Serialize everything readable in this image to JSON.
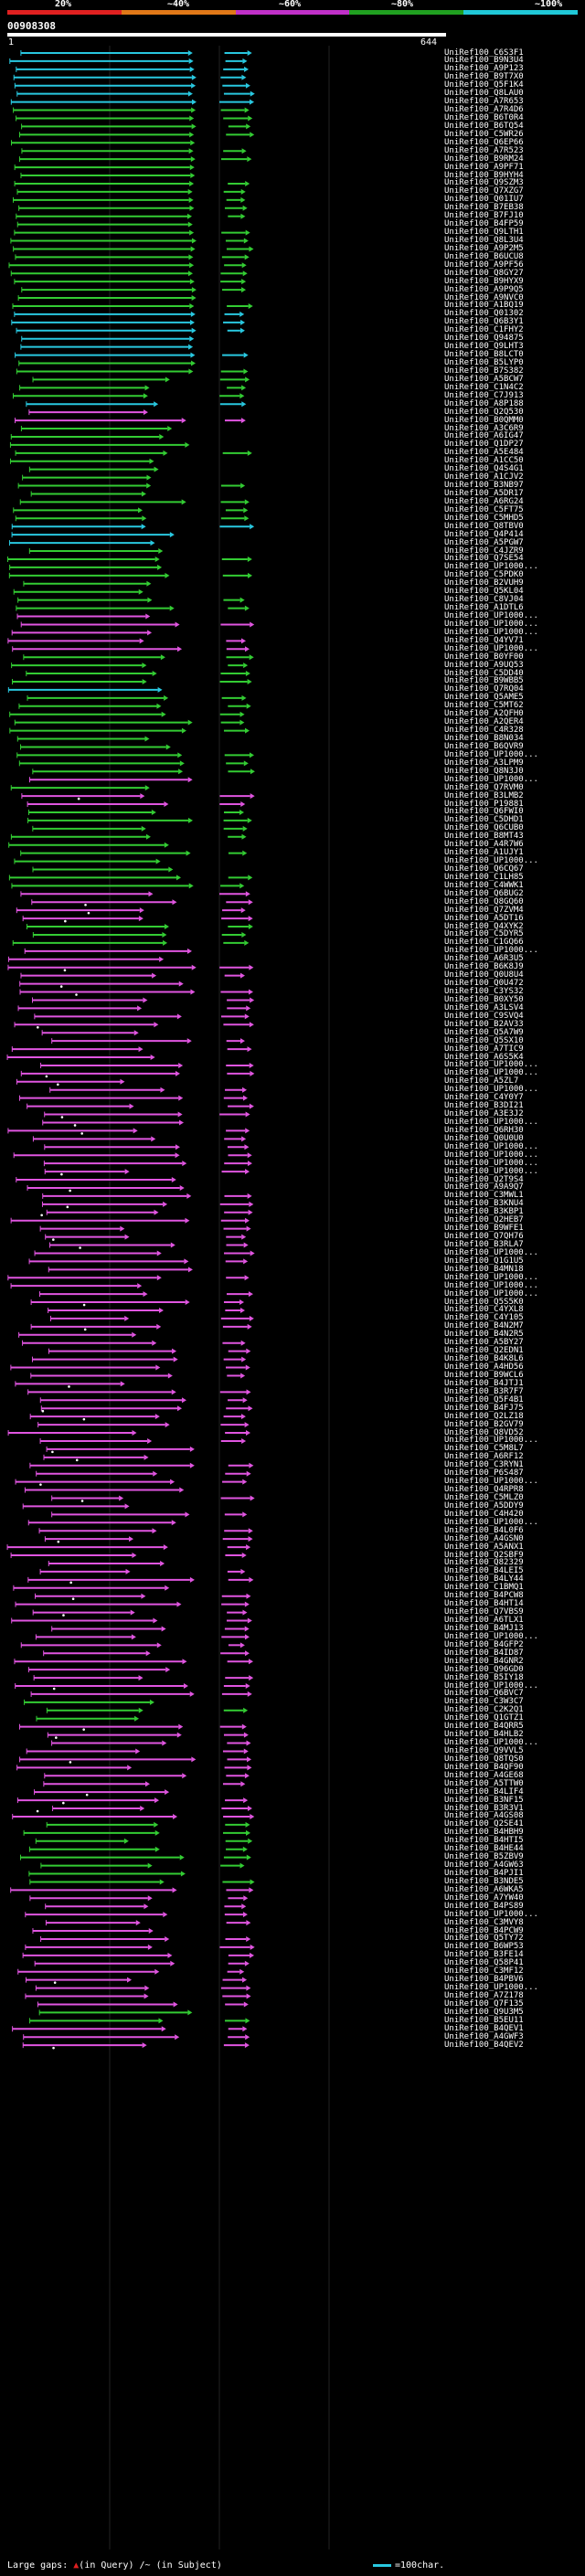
{
  "legend": {
    "labels": [
      "20%",
      "~40%",
      "~60%",
      "~80%",
      "~100%"
    ],
    "colors": [
      "#e02020",
      "#e07818",
      "#c030c8",
      "#20a020",
      "#20c8d8"
    ]
  },
  "query": {
    "id": "00908308",
    "start": "1",
    "end": "644"
  },
  "footer": {
    "large_gaps": "Large gaps:",
    "gap_query": "(in Query)",
    "gap_subject": "(in Subject)",
    "separator": " /~ ",
    "scale": "=100char."
  },
  "hits": [
    {
      "id": "UniRef100_C6S3F1",
      "c": "#29c8e0"
    },
    {
      "id": "UniRef100_B9N3U4",
      "c": "#29c8e0"
    },
    {
      "id": "UniRef100_A9P123",
      "c": "#29c8e0"
    },
    {
      "id": "UniRef100_B9T7X0",
      "c": "#29c8e0"
    },
    {
      "id": "UniRef100_Q5F1K4",
      "c": "#29c8e0"
    },
    {
      "id": "UniRef100_Q8LAU0",
      "c": "#29c8e0"
    },
    {
      "id": "UniRef100_A7R653",
      "c": "#29c8e0"
    },
    {
      "id": "UniRef100_A7R4D6",
      "c": "#33cc33"
    },
    {
      "id": "UniRef100_B6T0R4",
      "c": "#33cc33"
    },
    {
      "id": "UniRef100_B6TQ54",
      "c": "#33cc33"
    },
    {
      "id": "UniRef100_C5WR26",
      "c": "#33cc33"
    },
    {
      "id": "UniRef100_Q6EP66",
      "c": "#33cc33"
    },
    {
      "id": "UniRef100_A7R523",
      "c": "#33cc33"
    },
    {
      "id": "UniRef100_B9RM24",
      "c": "#33cc33"
    },
    {
      "id": "UniRef100_A9PF71",
      "c": "#33cc33"
    },
    {
      "id": "UniRef100_B9HYH4",
      "c": "#33cc33"
    },
    {
      "id": "UniRef100_Q9SZM3",
      "c": "#33cc33"
    },
    {
      "id": "UniRef100_Q7XZG7",
      "c": "#33cc33"
    },
    {
      "id": "UniRef100_Q01IU7",
      "c": "#33cc33"
    },
    {
      "id": "UniRef100_B7EB38",
      "c": "#33cc33"
    },
    {
      "id": "UniRef100_B7FJ10",
      "c": "#33cc33"
    },
    {
      "id": "UniRef100_B4FP59",
      "c": "#33cc33"
    },
    {
      "id": "UniRef100_Q9LTH1",
      "c": "#33cc33"
    },
    {
      "id": "UniRef100_Q8L3U4",
      "c": "#33cc33"
    },
    {
      "id": "UniRef100_A9P2M5",
      "c": "#33cc33"
    },
    {
      "id": "UniRef100_B6UCU8",
      "c": "#33cc33"
    },
    {
      "id": "UniRef100_A9PF56",
      "c": "#33cc33"
    },
    {
      "id": "UniRef100_Q8GY27",
      "c": "#33cc33"
    },
    {
      "id": "UniRef100_B9HYX9",
      "c": "#33cc33"
    },
    {
      "id": "UniRef100_A9P9Q5",
      "c": "#33cc33"
    },
    {
      "id": "UniRef100_A9NVC0",
      "c": "#33cc33"
    },
    {
      "id": "UniRef100_A1BQ19",
      "c": "#33cc33"
    },
    {
      "id": "UniRef100_Q01302",
      "c": "#29c8e0"
    },
    {
      "id": "UniRef100_Q6B3Y1",
      "c": "#29c8e0"
    },
    {
      "id": "UniRef100_C1FHY2",
      "c": "#29c8e0"
    },
    {
      "id": "UniRef100_Q94875",
      "c": "#29c8e0"
    },
    {
      "id": "UniRef100_Q9LHT3",
      "c": "#29c8e0"
    },
    {
      "id": "UniRef100_B8LCT0",
      "c": "#29c8e0"
    },
    {
      "id": "UniRef100_B5LYP0",
      "c": "#33cc33"
    },
    {
      "id": "UniRef100_B7S382",
      "c": "#33cc33"
    },
    {
      "id": "UniRef100_A5BCW7",
      "c": "#33cc33"
    },
    {
      "id": "UniRef100_C1N4C2",
      "c": "#33cc33"
    },
    {
      "id": "UniRef100_C7J913",
      "c": "#33cc33"
    },
    {
      "id": "UniRef100_A8P188",
      "c": "#29c8e0"
    },
    {
      "id": "UniRef100_Q2Q530",
      "c": "#e055e0"
    },
    {
      "id": "UniRef100_B0QMM0",
      "c": "#e055e0"
    },
    {
      "id": "UniRef100_A3C6R9",
      "c": "#33cc33"
    },
    {
      "id": "UniRef100_A6IG47",
      "c": "#33cc33"
    },
    {
      "id": "UniRef100_Q1DP27",
      "c": "#33cc33"
    },
    {
      "id": "UniRef100_A5E484",
      "c": "#33cc33"
    },
    {
      "id": "UniRef100_A1CC50",
      "c": "#33cc33"
    },
    {
      "id": "UniRef100_Q4S4G1",
      "c": "#33cc33"
    },
    {
      "id": "UniRef100_A1CJV2",
      "c": "#33cc33"
    },
    {
      "id": "UniRef100_B3NB97",
      "c": "#33cc33"
    },
    {
      "id": "UniRef100_A5DR17",
      "c": "#33cc33"
    },
    {
      "id": "UniRef100_A6RG24",
      "c": "#33cc33"
    },
    {
      "id": "UniRef100_C5FT75",
      "c": "#33cc33"
    },
    {
      "id": "UniRef100_C5MHD5",
      "c": "#33cc33"
    },
    {
      "id": "UniRef100_Q8TBV0",
      "c": "#29c8e0"
    },
    {
      "id": "UniRef100_Q4P414",
      "c": "#29c8e0"
    },
    {
      "id": "UniRef100_A5PGW7",
      "c": "#29c8e0"
    },
    {
      "id": "UniRef100_C4JZR9",
      "c": "#33cc33"
    },
    {
      "id": "UniRef100_Q7SE54",
      "c": "#33cc33"
    },
    {
      "id": "UniRef100_UP1000...",
      "c": "#33cc33"
    },
    {
      "id": "UniRef100_C5PDK0",
      "c": "#33cc33"
    },
    {
      "id": "UniRef100_B2VUH9",
      "c": "#33cc33"
    },
    {
      "id": "UniRef100_Q5KL04",
      "c": "#33cc33"
    },
    {
      "id": "UniRef100_C8VJ04",
      "c": "#33cc33"
    },
    {
      "id": "UniRef100_A1DTL6",
      "c": "#33cc33"
    },
    {
      "id": "UniRef100_UP1000...",
      "c": "#e055e0"
    },
    {
      "id": "UniRef100_UP1000...",
      "c": "#e055e0"
    },
    {
      "id": "UniRef100_UP1000...",
      "c": "#e055e0"
    },
    {
      "id": "UniRef100_Q4YV71",
      "c": "#e055e0"
    },
    {
      "id": "UniRef100_UP1000...",
      "c": "#e055e0"
    },
    {
      "id": "UniRef100_B0YF00",
      "c": "#33cc33"
    },
    {
      "id": "UniRef100_A9UQ53",
      "c": "#33cc33"
    },
    {
      "id": "UniRef100_C5DD40",
      "c": "#33cc33"
    },
    {
      "id": "UniRef100_B9WBB5",
      "c": "#33cc33"
    },
    {
      "id": "UniRef100_Q7RQ04",
      "c": "#29c8e0"
    },
    {
      "id": "UniRef100_Q5AME5",
      "c": "#33cc33"
    },
    {
      "id": "UniRef100_C5MT62",
      "c": "#33cc33"
    },
    {
      "id": "UniRef100_A2QFH0",
      "c": "#33cc33"
    },
    {
      "id": "UniRef100_A2QER4",
      "c": "#33cc33"
    },
    {
      "id": "UniRef100_C4R328",
      "c": "#33cc33"
    },
    {
      "id": "UniRef100_B8N034",
      "c": "#33cc33"
    },
    {
      "id": "UniRef100_B6QVR9",
      "c": "#33cc33"
    },
    {
      "id": "UniRef100_UP1000...",
      "c": "#33cc33"
    },
    {
      "id": "UniRef100_A3LPM9",
      "c": "#33cc33"
    },
    {
      "id": "UniRef100_Q8N3J0",
      "c": "#33cc33"
    },
    {
      "id": "UniRef100_UP1000...",
      "c": "#e055e0"
    },
    {
      "id": "UniRef100_Q7RVM0",
      "c": "#33cc33"
    },
    {
      "id": "UniRef100_B3LMB2",
      "c": "#e055e0"
    },
    {
      "id": "UniRef100_P19881",
      "c": "#e055e0"
    },
    {
      "id": "UniRef100_Q6FWI0",
      "c": "#33cc33"
    },
    {
      "id": "UniRef100_C5DHD1",
      "c": "#33cc33"
    },
    {
      "id": "UniRef100_Q6CUB0",
      "c": "#33cc33"
    },
    {
      "id": "UniRef100_B8MT43",
      "c": "#33cc33"
    },
    {
      "id": "UniRef100_A4R7W6",
      "c": "#33cc33"
    },
    {
      "id": "UniRef100_A1UJY1",
      "c": "#33cc33"
    },
    {
      "id": "UniRef100_UP1000...",
      "c": "#33cc33"
    },
    {
      "id": "UniRef100_Q6CQ67",
      "c": "#33cc33"
    },
    {
      "id": "UniRef100_C1LH85",
      "c": "#33cc33"
    },
    {
      "id": "UniRef100_C4WWK1",
      "c": "#33cc33"
    },
    {
      "id": "UniRef100_Q6BUG2",
      "c": "#e055e0"
    },
    {
      "id": "UniRef100_Q8GQ60",
      "c": "#e055e0"
    },
    {
      "id": "UniRef100_Q7ZVM4",
      "c": "#e055e0"
    },
    {
      "id": "UniRef100_A5DT16",
      "c": "#e055e0"
    },
    {
      "id": "UniRef100_Q4XYK2",
      "c": "#33cc33"
    },
    {
      "id": "UniRef100_C5DYR5",
      "c": "#33cc33"
    },
    {
      "id": "UniRef100_C1GQ66",
      "c": "#33cc33"
    },
    {
      "id": "UniRef100_UP1000...",
      "c": "#e055e0"
    },
    {
      "id": "UniRef100_A6R3U5",
      "c": "#e055e0"
    },
    {
      "id": "UniRef100_B6K8J9",
      "c": "#e055e0"
    },
    {
      "id": "UniRef100_Q0U8U4",
      "c": "#e055e0"
    },
    {
      "id": "UniRef100_Q0U472",
      "c": "#e055e0"
    },
    {
      "id": "UniRef100_C3YS32",
      "c": "#e055e0"
    },
    {
      "id": "UniRef100_B0XY50",
      "c": "#e055e0"
    },
    {
      "id": "UniRef100_A3LSV4",
      "c": "#e055e0"
    },
    {
      "id": "UniRef100_C9SVQ4",
      "c": "#e055e0"
    },
    {
      "id": "UniRef100_B2AV33",
      "c": "#e055e0"
    },
    {
      "id": "UniRef100_Q5A7W9",
      "c": "#e055e0"
    },
    {
      "id": "UniRef100_Q5SX10",
      "c": "#e055e0"
    },
    {
      "id": "UniRef100_A7TIC9",
      "c": "#e055e0"
    },
    {
      "id": "UniRef100_A6S5K4",
      "c": "#e055e0"
    },
    {
      "id": "UniRef100_UP1000...",
      "c": "#e055e0"
    },
    {
      "id": "UniRef100_UP1000...",
      "c": "#e055e0"
    },
    {
      "id": "UniRef100_A5ZL7",
      "c": "#e055e0"
    },
    {
      "id": "UniRef100_UP1000...",
      "c": "#e055e0"
    },
    {
      "id": "UniRef100_C4Y0Y7",
      "c": "#e055e0"
    },
    {
      "id": "UniRef100_B3DI21",
      "c": "#e055e0"
    },
    {
      "id": "UniRef100_A3E3J2",
      "c": "#e055e0"
    },
    {
      "id": "UniRef100_UP1000...",
      "c": "#e055e0"
    },
    {
      "id": "UniRef100_Q6RH30",
      "c": "#e055e0"
    },
    {
      "id": "UniRef100_Q0U0U0",
      "c": "#e055e0"
    },
    {
      "id": "UniRef100_UP1000...",
      "c": "#e055e0"
    },
    {
      "id": "UniRef100_UP1000...",
      "c": "#e055e0"
    },
    {
      "id": "UniRef100_UP1000...",
      "c": "#e055e0"
    },
    {
      "id": "UniRef100_UP1000...",
      "c": "#e055e0"
    },
    {
      "id": "UniRef100_Q2T9S4",
      "c": "#e055e0"
    },
    {
      "id": "UniRef100_A9A9Q7",
      "c": "#e055e0"
    },
    {
      "id": "UniRef100_C3MWL1",
      "c": "#e055e0"
    },
    {
      "id": "UniRef100_B3KNU4",
      "c": "#e055e0"
    },
    {
      "id": "UniRef100_B3KBP1",
      "c": "#e055e0"
    },
    {
      "id": "UniRef100_Q2HEB7",
      "c": "#e055e0"
    },
    {
      "id": "UniRef100_B9WFE1",
      "c": "#e055e0"
    },
    {
      "id": "UniRef100_Q7QH76",
      "c": "#e055e0"
    },
    {
      "id": "UniRef100_B3RLA7",
      "c": "#e055e0"
    },
    {
      "id": "UniRef100_UP1000...",
      "c": "#e055e0"
    },
    {
      "id": "UniRef100_Q1G1U5",
      "c": "#e055e0"
    },
    {
      "id": "UniRef100_B4MN18",
      "c": "#e055e0"
    },
    {
      "id": "UniRef100_UP1000...",
      "c": "#e055e0"
    },
    {
      "id": "UniRef100_UP1000...",
      "c": "#e055e0"
    },
    {
      "id": "UniRef100_UP1000...",
      "c": "#e055e0"
    },
    {
      "id": "UniRef100_Q5S5K0",
      "c": "#e055e0"
    },
    {
      "id": "UniRef100_C4YXL8",
      "c": "#e055e0"
    },
    {
      "id": "UniRef100_C4Y105",
      "c": "#e055e0"
    },
    {
      "id": "UniRef100_B4N2M7",
      "c": "#e055e0"
    },
    {
      "id": "UniRef100_B4N2R5",
      "c": "#e055e0"
    },
    {
      "id": "UniRef100_A5BY27",
      "c": "#e055e0"
    },
    {
      "id": "UniRef100_Q2EDN1",
      "c": "#e055e0"
    },
    {
      "id": "UniRef100_B4K8L6",
      "c": "#e055e0"
    },
    {
      "id": "UniRef100_A4HD56",
      "c": "#e055e0"
    },
    {
      "id": "UniRef100_B9WCL6",
      "c": "#e055e0"
    },
    {
      "id": "UniRef100_B4JTJ1",
      "c": "#e055e0"
    },
    {
      "id": "UniRef100_B3R7F7",
      "c": "#e055e0"
    },
    {
      "id": "UniRef100_Q5F4B1",
      "c": "#e055e0"
    },
    {
      "id": "UniRef100_B4FJ75",
      "c": "#e055e0"
    },
    {
      "id": "UniRef100_Q2LZ18",
      "c": "#e055e0"
    },
    {
      "id": "UniRef100_B2GV79",
      "c": "#e055e0"
    },
    {
      "id": "UniRef100_Q8VD52",
      "c": "#e055e0"
    },
    {
      "id": "UniRef100_UP1000...",
      "c": "#e055e0"
    },
    {
      "id": "UniRef100_C5M8L7",
      "c": "#e055e0"
    },
    {
      "id": "UniRef100_A6RF12",
      "c": "#e055e0"
    },
    {
      "id": "UniRef100_C3RYN1",
      "c": "#e055e0"
    },
    {
      "id": "UniRef100_P6S487",
      "c": "#e055e0"
    },
    {
      "id": "UniRef100_UP1000...",
      "c": "#e055e0"
    },
    {
      "id": "UniRef100_Q4RPR8",
      "c": "#e055e0"
    },
    {
      "id": "UniRef100_C5MLZ0",
      "c": "#e055e0"
    },
    {
      "id": "UniRef100_A5DDY9",
      "c": "#e055e0"
    },
    {
      "id": "UniRef100_C4H420",
      "c": "#e055e0"
    },
    {
      "id": "UniRef100_UP1000...",
      "c": "#e055e0"
    },
    {
      "id": "UniRef100_B4L0F6",
      "c": "#e055e0"
    },
    {
      "id": "UniRef100_A4GSN0",
      "c": "#e055e0"
    },
    {
      "id": "UniRef100_A5ANX1",
      "c": "#e055e0"
    },
    {
      "id": "UniRef100_Q2SBF9",
      "c": "#e055e0"
    },
    {
      "id": "UniRef100_Q82329",
      "c": "#e055e0"
    },
    {
      "id": "UniRef100_B4LEI5",
      "c": "#e055e0"
    },
    {
      "id": "UniRef100_B4LY44",
      "c": "#e055e0"
    },
    {
      "id": "UniRef100_C1BMQ1",
      "c": "#e055e0"
    },
    {
      "id": "UniRef100_B4PCW8",
      "c": "#e055e0"
    },
    {
      "id": "UniRef100_B4HT14",
      "c": "#e055e0"
    },
    {
      "id": "UniRef100_Q7VBS9",
      "c": "#e055e0"
    },
    {
      "id": "UniRef100_A6TLX1",
      "c": "#e055e0"
    },
    {
      "id": "UniRef100_B4MJ13",
      "c": "#e055e0"
    },
    {
      "id": "UniRef100_UP1000...",
      "c": "#e055e0"
    },
    {
      "id": "UniRef100_B4GFP2",
      "c": "#e055e0"
    },
    {
      "id": "UniRef100_B4ID87",
      "c": "#e055e0"
    },
    {
      "id": "UniRef100_B4GNR2",
      "c": "#e055e0"
    },
    {
      "id": "UniRef100_Q96GD0",
      "c": "#e055e0"
    },
    {
      "id": "UniRef100_B5IY18",
      "c": "#e055e0"
    },
    {
      "id": "UniRef100_UP1000...",
      "c": "#e055e0"
    },
    {
      "id": "UniRef100_Q6BVC7",
      "c": "#e055e0"
    },
    {
      "id": "UniRef100_C3W3C7",
      "c": "#33cc33"
    },
    {
      "id": "UniRef100_C2K2Q1",
      "c": "#33cc33"
    },
    {
      "id": "UniRef100_Q1GTZ1",
      "c": "#33cc33"
    },
    {
      "id": "UniRef100_B4QRR5",
      "c": "#e055e0"
    },
    {
      "id": "UniRef100_B4HLB2",
      "c": "#e055e0"
    },
    {
      "id": "UniRef100_UP1000...",
      "c": "#e055e0"
    },
    {
      "id": "UniRef100_Q9VVL5",
      "c": "#e055e0"
    },
    {
      "id": "UniRef100_Q8TQS0",
      "c": "#e055e0"
    },
    {
      "id": "UniRef100_B4QF90",
      "c": "#e055e0"
    },
    {
      "id": "UniRef100_A4GE68",
      "c": "#e055e0"
    },
    {
      "id": "UniRef100_A5TTW0",
      "c": "#e055e0"
    },
    {
      "id": "UniRef100_B4LIF4",
      "c": "#e055e0"
    },
    {
      "id": "UniRef100_B3NF15",
      "c": "#e055e0"
    },
    {
      "id": "UniRef100_B3R3V1",
      "c": "#e055e0"
    },
    {
      "id": "UniRef100_A4GS08",
      "c": "#e055e0"
    },
    {
      "id": "UniRef100_Q2SE41",
      "c": "#33cc33"
    },
    {
      "id": "UniRef100_B4HBH9",
      "c": "#33cc33"
    },
    {
      "id": "UniRef100_B4HTI5",
      "c": "#33cc33"
    },
    {
      "id": "UniRef100_B4HE44",
      "c": "#33cc33"
    },
    {
      "id": "UniRef100_B5ZBV9",
      "c": "#33cc33"
    },
    {
      "id": "UniRef100_A4GW63",
      "c": "#33cc33"
    },
    {
      "id": "UniRef100_B4PJI1",
      "c": "#33cc33"
    },
    {
      "id": "UniRef100_B3NDE5",
      "c": "#33cc33"
    },
    {
      "id": "UniRef100_A6WKA5",
      "c": "#e055e0"
    },
    {
      "id": "UniRef100_A7YW40",
      "c": "#e055e0"
    },
    {
      "id": "UniRef100_B4PS89",
      "c": "#e055e0"
    },
    {
      "id": "UniRef100_UP1000...",
      "c": "#e055e0"
    },
    {
      "id": "UniRef100_C3MVY8",
      "c": "#e055e0"
    },
    {
      "id": "UniRef100_B4PCW9",
      "c": "#e055e0"
    },
    {
      "id": "UniRef100_Q5TY72",
      "c": "#e055e0"
    },
    {
      "id": "UniRef100_B6WP53",
      "c": "#e055e0"
    },
    {
      "id": "UniRef100_B3FE14",
      "c": "#e055e0"
    },
    {
      "id": "UniRef100_Q58P41",
      "c": "#e055e0"
    },
    {
      "id": "UniRef100_C3MF12",
      "c": "#e055e0"
    },
    {
      "id": "UniRef100_B4PBV6",
      "c": "#e055e0"
    },
    {
      "id": "UniRef100_UP1000...",
      "c": "#e055e0"
    },
    {
      "id": "UniRef100_A7Z178",
      "c": "#e055e0"
    },
    {
      "id": "UniRef100_Q7F135",
      "c": "#e055e0"
    },
    {
      "id": "UniRef100_Q9U3M5",
      "c": "#33cc33"
    },
    {
      "id": "UniRef100_B5EU11",
      "c": "#33cc33"
    },
    {
      "id": "UniRef100_B4QEV1",
      "c": "#e055e0"
    },
    {
      "id": "UniRef100_A4GWF3",
      "c": "#e055e0"
    },
    {
      "id": "UniRef100_B4QEV2",
      "c": "#e055e0"
    }
  ]
}
